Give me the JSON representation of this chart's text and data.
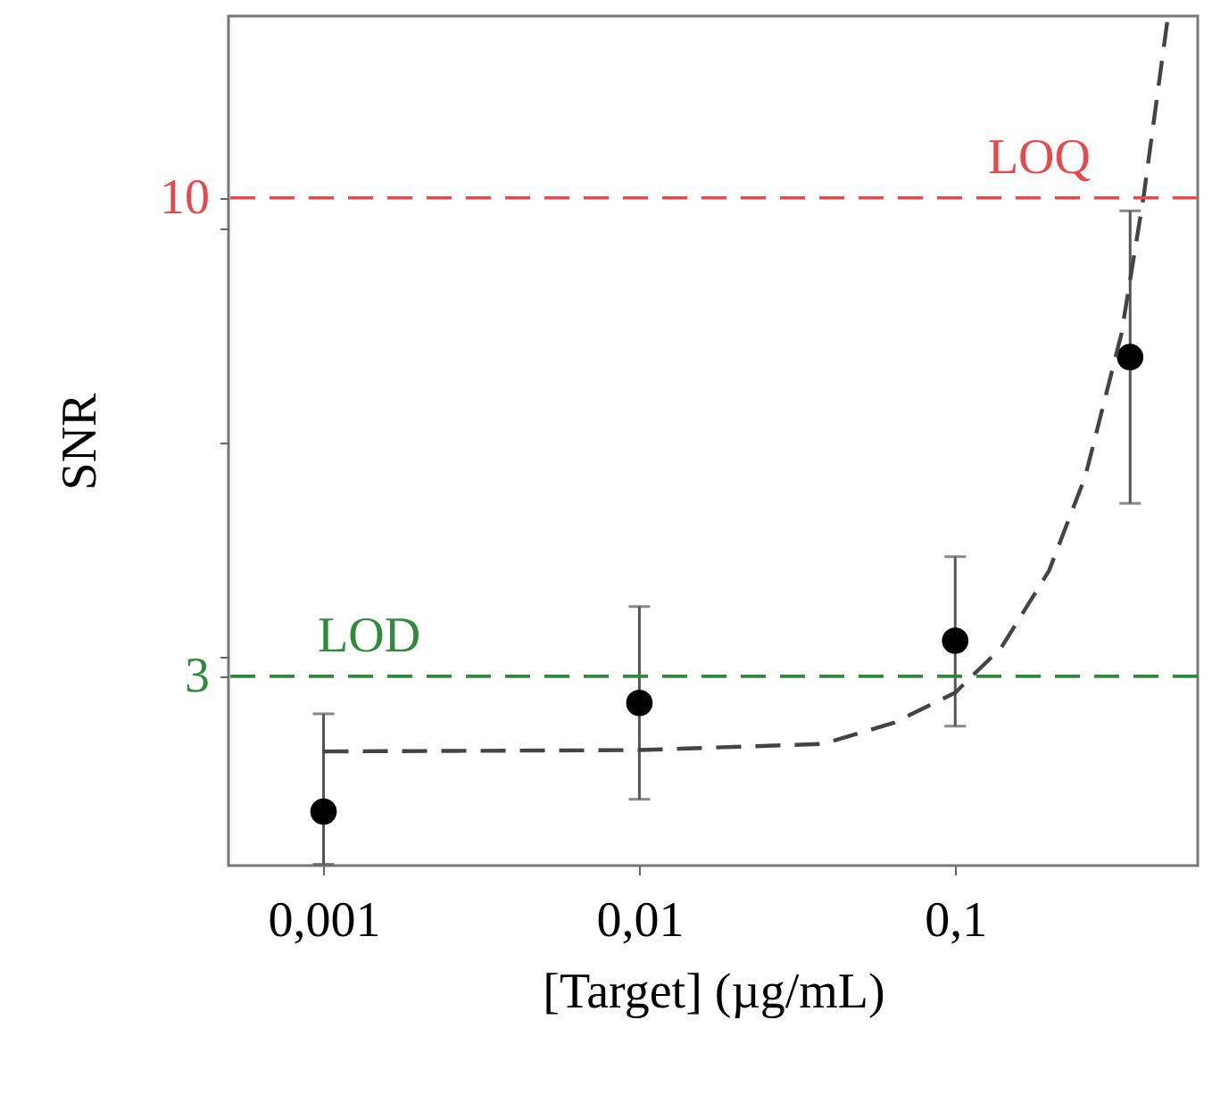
{
  "chart_data": {
    "type": "scatter",
    "xlabel": "[Target] (µg/mL)",
    "ylabel": "SNR",
    "log": "x",
    "grid": false,
    "xlim": [
      0.0005,
      0.586
    ],
    "xticks": [
      {
        "value": 0.001,
        "label": "0,001"
      },
      {
        "value": 0.01,
        "label": "0,01"
      },
      {
        "value": 0.1,
        "label": "0,1"
      }
    ],
    "ylim": [
      0.23,
      12.66
    ],
    "yticks": [
      3,
      10,
      {
        "value": 3.29,
        "label": null
      },
      {
        "value": 6.42,
        "label": null
      },
      {
        "value": 9.55,
        "label": null
      }
    ],
    "series": [
      {
        "color": "#000000",
        "marker": "circle",
        "x": [
          0.001,
          0.01,
          0.1,
          0.358
        ],
        "values": [
          1.02,
          2.61,
          3.52,
          7.67
        ],
        "errors": [
          [
            0.25,
            2.45
          ],
          [
            1.2,
            4.02
          ],
          [
            2.27,
            4.75
          ],
          [
            5.53,
            9.81
          ]
        ]
      },
      {
        "type": "line",
        "color": "#444444",
        "line_style": "dashed",
        "marker": "none",
        "x": [
          0.001,
          0.01,
          0.038,
          0.064,
          0.1,
          0.14,
          0.198,
          0.258,
          0.336,
          0.395,
          0.47
        ],
        "values": [
          1.9,
          1.92,
          2.01,
          2.32,
          2.76,
          3.42,
          4.54,
          5.92,
          8.01,
          10.02,
          12.6
        ]
      }
    ],
    "ref_lines": [
      {
        "axis": "y",
        "value": 10,
        "label": "LOQ",
        "color": "#e8474c",
        "line_style": "dashed"
      },
      {
        "axis": "y",
        "value": 3,
        "label": "LOD",
        "color": "#2e8b3a",
        "line_style": "dashed"
      }
    ]
  }
}
